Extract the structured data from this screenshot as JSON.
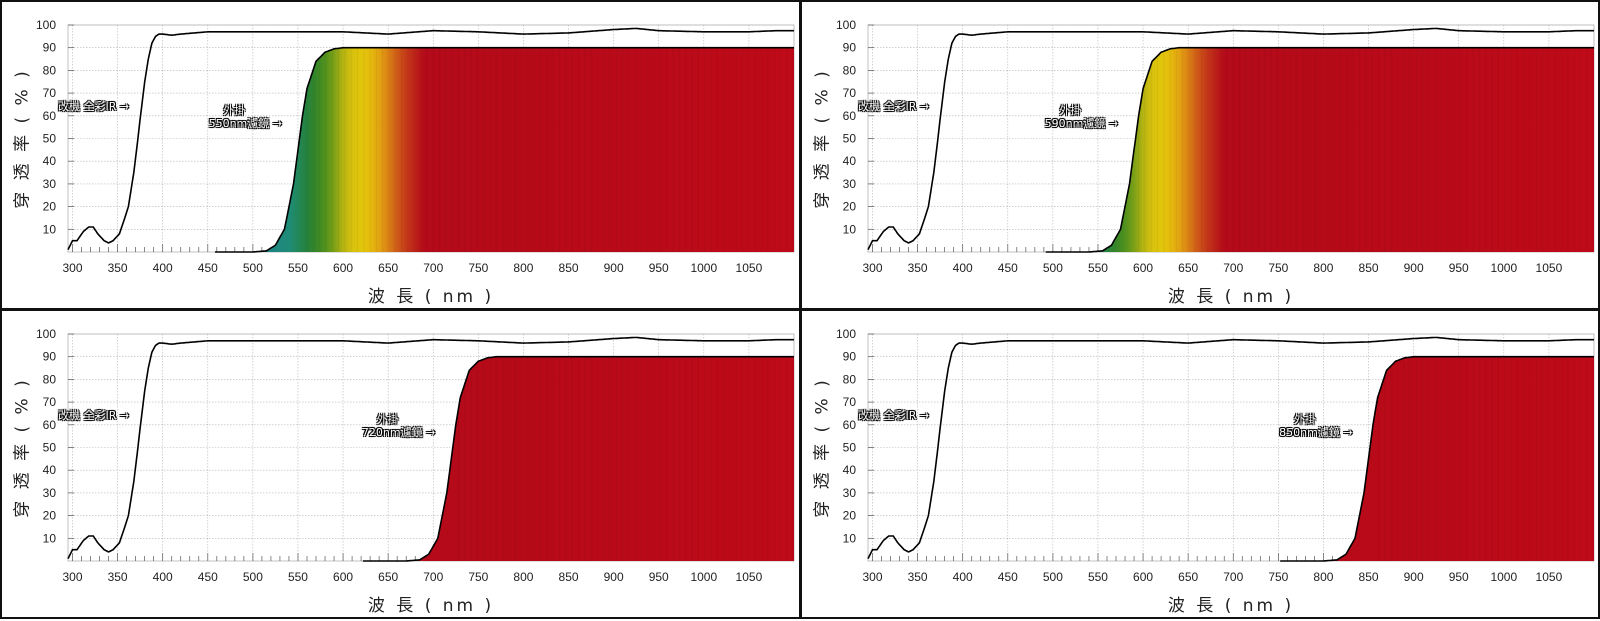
{
  "chart_data": [
    {
      "type": "area",
      "xlabel": "波 長 ( nm )",
      "ylabel": "穿 透 率 ( % )",
      "xlim": [
        295,
        1100
      ],
      "ylim": [
        0,
        100
      ],
      "x_ticks": [
        300,
        350,
        400,
        450,
        500,
        550,
        600,
        650,
        700,
        750,
        800,
        850,
        900,
        950,
        1000,
        1050
      ],
      "y_ticks": [
        10,
        20,
        30,
        40,
        50,
        60,
        70,
        80,
        90,
        100
      ],
      "grid": true,
      "series": [
        {
          "name": "改機 全彩IR",
          "x": [
            295,
            300,
            305,
            312,
            318,
            323,
            328,
            335,
            340,
            345,
            352,
            358,
            362,
            368,
            372,
            376,
            380,
            384,
            388,
            392,
            396,
            400,
            410,
            420,
            450,
            500,
            550,
            600,
            650,
            700,
            750,
            800,
            850,
            900,
            925,
            950,
            1000,
            1050,
            1080,
            1100
          ],
          "y": [
            1,
            5,
            5,
            9,
            11,
            11,
            8,
            5,
            4,
            5,
            8,
            15,
            20,
            35,
            48,
            62,
            75,
            85,
            92,
            95,
            96,
            96,
            95.5,
            96,
            97,
            97,
            97,
            97,
            96,
            97.5,
            97,
            96,
            96.5,
            98,
            98.5,
            97.5,
            97,
            97,
            97.5,
            97.5
          ]
        },
        {
          "name": "外掛 550nm濾鏡",
          "x": [
            458,
            500,
            515,
            525,
            535,
            545,
            550,
            555,
            560,
            570,
            580,
            590,
            600,
            620,
            1100
          ],
          "y": [
            0,
            0,
            0.5,
            3,
            10,
            30,
            45,
            60,
            72,
            84,
            88,
            89.5,
            90,
            90,
            90
          ]
        }
      ],
      "annotations": [
        {
          "text": "改機 全彩IR",
          "points_to": "改機 全彩IR"
        },
        {
          "text": "外掛\n550nm濾鏡",
          "points_to": "外掛 550nm濾鏡"
        }
      ]
    },
    {
      "type": "area",
      "xlabel": "波 長 ( nm )",
      "ylabel": "穿 透 率 ( % )",
      "xlim": [
        295,
        1100
      ],
      "ylim": [
        0,
        100
      ],
      "x_ticks": [
        300,
        350,
        400,
        450,
        500,
        550,
        600,
        650,
        700,
        750,
        800,
        850,
        900,
        950,
        1000,
        1050
      ],
      "y_ticks": [
        10,
        20,
        30,
        40,
        50,
        60,
        70,
        80,
        90,
        100
      ],
      "grid": true,
      "series": [
        {
          "name": "改機 全彩IR",
          "x": [
            295,
            300,
            305,
            312,
            318,
            323,
            328,
            335,
            340,
            345,
            352,
            358,
            362,
            368,
            372,
            376,
            380,
            384,
            388,
            392,
            396,
            400,
            410,
            420,
            450,
            500,
            550,
            600,
            650,
            700,
            750,
            800,
            850,
            900,
            925,
            950,
            1000,
            1050,
            1080,
            1100
          ],
          "y": [
            1,
            5,
            5,
            9,
            11,
            11,
            8,
            5,
            4,
            5,
            8,
            15,
            20,
            35,
            48,
            62,
            75,
            85,
            92,
            95,
            96,
            96,
            95.5,
            96,
            97,
            97,
            97,
            97,
            96,
            97.5,
            97,
            96,
            96.5,
            98,
            98.5,
            97.5,
            97,
            97,
            97.5,
            97.5
          ]
        },
        {
          "name": "外掛 590nm濾鏡",
          "x": [
            492,
            540,
            555,
            565,
            575,
            585,
            590,
            595,
            600,
            610,
            620,
            630,
            640,
            660,
            1100
          ],
          "y": [
            0,
            0,
            0.5,
            3,
            10,
            30,
            45,
            60,
            72,
            84,
            88,
            89.5,
            90,
            90,
            90
          ]
        }
      ],
      "annotations": [
        {
          "text": "改機 全彩IR",
          "points_to": "改機 全彩IR"
        },
        {
          "text": "外掛\n590nm濾鏡",
          "points_to": "外掛 590nm濾鏡"
        }
      ]
    },
    {
      "type": "area",
      "xlabel": "波 長 ( nm )",
      "ylabel": "穿 透 率 ( % )",
      "xlim": [
        295,
        1100
      ],
      "ylim": [
        0,
        100
      ],
      "x_ticks": [
        300,
        350,
        400,
        450,
        500,
        550,
        600,
        650,
        700,
        750,
        800,
        850,
        900,
        950,
        1000,
        1050
      ],
      "y_ticks": [
        10,
        20,
        30,
        40,
        50,
        60,
        70,
        80,
        90,
        100
      ],
      "grid": true,
      "series": [
        {
          "name": "改機 全彩IR",
          "x": [
            295,
            300,
            305,
            312,
            318,
            323,
            328,
            335,
            340,
            345,
            352,
            358,
            362,
            368,
            372,
            376,
            380,
            384,
            388,
            392,
            396,
            400,
            410,
            420,
            450,
            500,
            550,
            600,
            650,
            700,
            750,
            800,
            850,
            900,
            925,
            950,
            1000,
            1050,
            1080,
            1100
          ],
          "y": [
            1,
            5,
            5,
            9,
            11,
            11,
            8,
            5,
            4,
            5,
            8,
            15,
            20,
            35,
            48,
            62,
            75,
            85,
            92,
            95,
            96,
            96,
            95.5,
            96,
            97,
            97,
            97,
            97,
            96,
            97.5,
            97,
            96,
            96.5,
            98,
            98.5,
            97.5,
            97,
            97,
            97.5,
            97.5
          ]
        },
        {
          "name": "外掛 720nm濾鏡",
          "x": [
            622,
            670,
            685,
            695,
            705,
            715,
            720,
            725,
            730,
            740,
            750,
            760,
            770,
            790,
            1100
          ],
          "y": [
            0,
            0,
            0.5,
            3,
            10,
            30,
            45,
            60,
            72,
            84,
            88,
            89.5,
            90,
            90,
            90
          ]
        }
      ],
      "annotations": [
        {
          "text": "改機 全彩IR",
          "points_to": "改機 全彩IR"
        },
        {
          "text": "外掛\n720nm濾鏡",
          "points_to": "外掛 720nm濾鏡"
        }
      ]
    },
    {
      "type": "area",
      "xlabel": "波 長 ( nm )",
      "ylabel": "穿 透 率 ( % )",
      "xlim": [
        295,
        1100
      ],
      "ylim": [
        0,
        100
      ],
      "x_ticks": [
        300,
        350,
        400,
        450,
        500,
        550,
        600,
        650,
        700,
        750,
        800,
        850,
        900,
        950,
        1000,
        1050
      ],
      "y_ticks": [
        10,
        20,
        30,
        40,
        50,
        60,
        70,
        80,
        90,
        100
      ],
      "grid": true,
      "series": [
        {
          "name": "改機 全彩IR",
          "x": [
            295,
            300,
            305,
            312,
            318,
            323,
            328,
            335,
            340,
            345,
            352,
            358,
            362,
            368,
            372,
            376,
            380,
            384,
            388,
            392,
            396,
            400,
            410,
            420,
            450,
            500,
            550,
            600,
            650,
            700,
            750,
            800,
            850,
            900,
            925,
            950,
            1000,
            1050,
            1080,
            1100
          ],
          "y": [
            1,
            5,
            5,
            9,
            11,
            11,
            8,
            5,
            4,
            5,
            8,
            15,
            20,
            35,
            48,
            62,
            75,
            85,
            92,
            95,
            96,
            96,
            95.5,
            96,
            97,
            97,
            97,
            97,
            96,
            97.5,
            97,
            96,
            96.5,
            98,
            98.5,
            97.5,
            97,
            97,
            97.5,
            97.5
          ]
        },
        {
          "name": "外掛 850nm濾鏡",
          "x": [
            752,
            800,
            815,
            825,
            835,
            845,
            850,
            855,
            860,
            870,
            880,
            890,
            900,
            920,
            1100
          ],
          "y": [
            0,
            0,
            0.5,
            3,
            10,
            30,
            45,
            60,
            72,
            84,
            88,
            89.5,
            90,
            90,
            90
          ]
        }
      ],
      "annotations": [
        {
          "text": "改機 全彩IR",
          "points_to": "改機 全彩IR"
        },
        {
          "text": "外掛\n850nm濾鏡",
          "points_to": "外掛 850nm濾鏡"
        }
      ]
    }
  ]
}
